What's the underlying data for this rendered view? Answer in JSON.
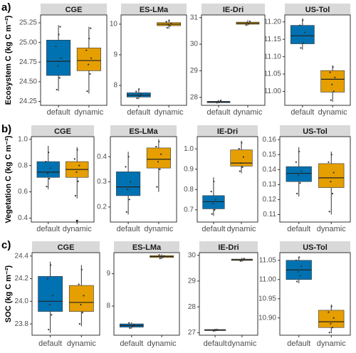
{
  "chart_data": [
    {
      "type": "box",
      "tag": "a)",
      "ylabel": "Ecosystem C (kg C m⁻²)",
      "categories": [
        "default",
        "dynamic"
      ],
      "colors": [
        "#0072b2",
        "#e69f00"
      ],
      "panels": [
        {
          "title": "CGE",
          "ylim": [
            24.2,
            25.35
          ],
          "yticks": [
            24.25,
            {
              "value": 24.5,
              "label": "24.50"
            },
            24.75,
            {
              "value": 25,
              "label": "25.00"
            },
            25.25
          ],
          "boxes": [
            {
              "min": 24.38,
              "q1": 24.58,
              "median": 24.76,
              "q3": 25.03,
              "max": 25.22,
              "points": [
                24.4,
                24.55,
                24.7,
                24.8,
                24.95,
                25.1,
                25.2
              ]
            },
            {
              "min": 24.35,
              "q1": 24.64,
              "median": 24.77,
              "q3": 24.93,
              "max": 25.2,
              "points": [
                24.38,
                24.6,
                24.72,
                24.8,
                24.9,
                25.05,
                25.18
              ]
            }
          ]
        },
        {
          "title": "ES-LMa",
          "ylim": [
            7.35,
            10.3
          ],
          "yticks": [
            8,
            9,
            10
          ],
          "boxes": [
            {
              "min": 7.55,
              "q1": 7.62,
              "median": 7.68,
              "q3": 7.76,
              "max": 7.9,
              "points": [
                7.58,
                7.64,
                7.68,
                7.72,
                7.8,
                7.88
              ]
            },
            {
              "min": 9.85,
              "q1": 9.95,
              "median": 10.0,
              "q3": 10.05,
              "max": 10.15,
              "points": [
                9.88,
                9.95,
                9.99,
                10.02,
                10.08,
                10.12
              ]
            }
          ]
        },
        {
          "title": "IE-Dri",
          "ylim": [
            27.7,
            31.1
          ],
          "yticks": [
            28,
            29,
            30,
            31
          ],
          "boxes": [
            {
              "min": 27.78,
              "q1": 27.8,
              "median": 27.83,
              "q3": 27.85,
              "max": 27.9,
              "points": [
                27.8,
                27.82,
                27.84,
                27.88
              ]
            },
            {
              "min": 30.7,
              "q1": 30.75,
              "median": 30.79,
              "q3": 30.83,
              "max": 30.9,
              "points": [
                30.72,
                30.77,
                30.8,
                30.86
              ]
            }
          ]
        },
        {
          "title": "US-Tol",
          "ylim": [
            10.96,
            11.22
          ],
          "yticks": [
            {
              "value": 11,
              "label": "11.00"
            },
            11.05,
            {
              "value": 11.1,
              "label": "11.10"
            },
            11.15,
            {
              "value": 11.2,
              "label": "11.20"
            }
          ],
          "boxes": [
            {
              "min": 11.12,
              "q1": 11.137,
              "median": 11.16,
              "q3": 11.19,
              "max": 11.21,
              "points": [
                11.125,
                11.14,
                11.16,
                11.17,
                11.19,
                11.205
              ]
            },
            {
              "min": 10.97,
              "q1": 10.998,
              "median": 11.035,
              "q3": 11.06,
              "max": 11.075,
              "points": [
                10.975,
                11.0,
                11.02,
                11.04,
                11.055,
                11.07
              ]
            }
          ]
        }
      ]
    },
    {
      "type": "box",
      "tag": "b)",
      "ylabel": "Vegetation C (kg C m⁻²)",
      "categories": [
        "default",
        "dynamic"
      ],
      "colors": [
        "#0072b2",
        "#e69f00"
      ],
      "panels": [
        {
          "title": "CGE",
          "ylim": [
            0.37,
            1.02
          ],
          "yticks": [
            0.4,
            0.6,
            0.8,
            {
              "value": 1,
              "label": "1.0"
            }
          ],
          "boxes": [
            {
              "min": 0.62,
              "q1": 0.71,
              "median": 0.75,
              "q3": 0.83,
              "max": 0.95,
              "points": [
                0.64,
                0.7,
                0.74,
                0.78,
                0.83,
                0.9
              ]
            },
            {
              "min": 0.55,
              "q1": 0.71,
              "median": 0.77,
              "q3": 0.83,
              "max": 0.94,
              "points": [
                0.57,
                0.68,
                0.75,
                0.8,
                0.85,
                0.92
              ],
              "outliers": [
                0.38
              ]
            }
          ]
        },
        {
          "title": "ES-LMa",
          "ylim": [
            0.14,
            0.48
          ],
          "yticks": [
            0.2,
            0.3,
            0.4
          ],
          "boxes": [
            {
              "min": 0.17,
              "q1": 0.245,
              "median": 0.28,
              "q3": 0.34,
              "max": 0.42,
              "points": [
                0.18,
                0.23,
                0.27,
                0.3,
                0.36,
                0.4
              ]
            },
            {
              "min": 0.26,
              "q1": 0.355,
              "median": 0.39,
              "q3": 0.435,
              "max": 0.47,
              "points": [
                0.28,
                0.35,
                0.38,
                0.41,
                0.44,
                0.46
              ]
            }
          ]
        },
        {
          "title": "IE-Dri",
          "ylim": [
            0.64,
            1.06
          ],
          "yticks": [
            0.7,
            0.8,
            0.9,
            {
              "value": 1,
              "label": "1.0"
            }
          ],
          "boxes": [
            {
              "min": 0.67,
              "q1": 0.705,
              "median": 0.74,
              "q3": 0.77,
              "max": 0.86,
              "points": [
                0.68,
                0.7,
                0.73,
                0.75,
                0.79,
                0.84
              ]
            },
            {
              "min": 0.88,
              "q1": 0.915,
              "median": 0.93,
              "q3": 0.995,
              "max": 1.04,
              "points": [
                0.89,
                0.91,
                0.93,
                0.96,
                1.0,
                1.03
              ]
            }
          ]
        },
        {
          "title": "US-Tol",
          "ylim": [
            0.105,
            0.162
          ],
          "yticks": [
            0.11,
            0.12,
            0.13,
            0.14,
            0.15,
            0.16
          ],
          "boxes": [
            {
              "min": 0.122,
              "q1": 0.132,
              "median": 0.1375,
              "q3": 0.142,
              "max": 0.155,
              "points": [
                0.124,
                0.131,
                0.136,
                0.139,
                0.145,
                0.152
              ]
            },
            {
              "min": 0.11,
              "q1": 0.128,
              "median": 0.1345,
              "q3": 0.144,
              "max": 0.152,
              "points": [
                0.112,
                0.124,
                0.132,
                0.138,
                0.145,
                0.15
              ]
            }
          ]
        }
      ]
    },
    {
      "type": "box",
      "tag": "c)",
      "ylabel": "SOC (kg C m⁻²)",
      "categories": [
        "default",
        "dynamic"
      ],
      "colors": [
        "#0072b2",
        "#e69f00"
      ],
      "panels": [
        {
          "title": "CGE",
          "ylim": [
            23.7,
            24.43
          ],
          "yticks": [
            23.8,
            {
              "value": 24,
              "label": "24.0"
            },
            24.2,
            24.4
          ],
          "boxes": [
            {
              "min": 23.72,
              "q1": 23.91,
              "median": 24.0,
              "q3": 24.22,
              "max": 24.35,
              "points": [
                23.75,
                23.88,
                23.97,
                24.05,
                24.2,
                24.32
              ]
            },
            {
              "min": 23.78,
              "q1": 23.91,
              "median": 23.99,
              "q3": 24.14,
              "max": 24.32,
              "points": [
                23.8,
                23.9,
                23.97,
                24.05,
                24.15,
                24.28
              ]
            }
          ]
        },
        {
          "title": "ES-LMa",
          "ylim": [
            7.1,
            9.65
          ],
          "yticks": [
            8,
            9
          ],
          "boxes": [
            {
              "min": 7.3,
              "q1": 7.35,
              "median": 7.4,
              "q3": 7.45,
              "max": 7.5,
              "points": [
                7.32,
                7.37,
                7.4,
                7.43,
                7.48
              ]
            },
            {
              "min": 9.45,
              "q1": 9.5,
              "median": 9.53,
              "q3": 9.56,
              "max": 9.6,
              "points": [
                9.47,
                9.51,
                9.53,
                9.55,
                9.58
              ]
            }
          ]
        },
        {
          "title": "IE-Dri",
          "ylim": [
            26.9,
            30.1
          ],
          "yticks": [
            27,
            28,
            29,
            30
          ],
          "boxes": [
            {
              "min": 27.05,
              "q1": 27.08,
              "median": 27.1,
              "q3": 27.12,
              "max": 27.15,
              "points": [
                27.07,
                27.09,
                27.1,
                27.12
              ]
            },
            {
              "min": 29.75,
              "q1": 29.8,
              "median": 29.82,
              "q3": 29.85,
              "max": 29.9,
              "points": [
                29.78,
                29.81,
                29.83,
                29.87
              ]
            }
          ]
        },
        {
          "title": "US-Tol",
          "ylim": [
            10.855,
            11.07
          ],
          "yticks": [
            {
              "value": 10.9,
              "label": "10.90"
            },
            10.95,
            {
              "value": 11,
              "label": "11.00"
            },
            11.05
          ],
          "boxes": [
            {
              "min": 10.99,
              "q1": 11.0,
              "median": 11.025,
              "q3": 11.05,
              "max": 11.06,
              "points": [
                10.995,
                11.01,
                11.02,
                11.035,
                11.05,
                11.058
              ]
            },
            {
              "min": 10.86,
              "q1": 10.875,
              "median": 10.89,
              "q3": 10.92,
              "max": 10.935,
              "points": [
                10.862,
                10.875,
                10.885,
                10.9,
                10.915,
                10.93
              ]
            }
          ]
        }
      ]
    }
  ]
}
